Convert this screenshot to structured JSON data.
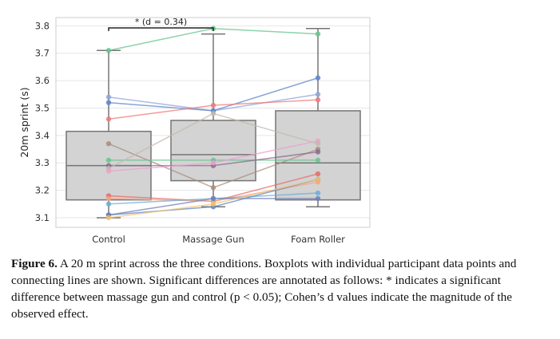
{
  "chart_data": {
    "type": "box",
    "categories": [
      "Control",
      "Massage Gun",
      "Foam Roller"
    ],
    "ylabel": "20m sprint (s)",
    "xlabel": "",
    "ylim": [
      3.065,
      3.83
    ],
    "yticks": [
      3.1,
      3.2,
      3.3,
      3.4,
      3.5,
      3.6,
      3.7,
      3.8
    ],
    "grid": true,
    "boxes": [
      {
        "category": "Control",
        "whisker_low": 3.1,
        "q1": 3.165,
        "median": 3.29,
        "q3": 3.415,
        "whisker_high": 3.71
      },
      {
        "category": "Massage Gun",
        "whisker_low": 3.14,
        "q1": 3.235,
        "median": 3.33,
        "q3": 3.455,
        "whisker_high": 3.77
      },
      {
        "category": "Foam Roller",
        "whisker_low": 3.14,
        "q1": 3.165,
        "median": 3.3,
        "q3": 3.49,
        "whisker_high": 3.79
      }
    ],
    "participants": [
      {
        "color": "#66c48d",
        "values": [
          3.71,
          3.79,
          3.77
        ]
      },
      {
        "color": "#8fa7d6",
        "values": [
          3.54,
          3.49,
          3.55
        ]
      },
      {
        "color": "#5f86c9",
        "values": [
          3.52,
          3.49,
          3.61
        ]
      },
      {
        "color": "#ef7a7a",
        "values": [
          3.46,
          3.51,
          3.53
        ]
      },
      {
        "color": "#a88d7c",
        "values": [
          3.37,
          3.21,
          3.35
        ]
      },
      {
        "color": "#66c48d",
        "values": [
          3.31,
          3.31,
          3.31
        ]
      },
      {
        "color": "#8b6a8f",
        "values": [
          3.29,
          3.29,
          3.34
        ]
      },
      {
        "color": "#ee9ed2",
        "values": [
          3.27,
          3.3,
          3.38
        ]
      },
      {
        "color": "#c4b8ae",
        "values": [
          3.28,
          3.48,
          3.37
        ]
      },
      {
        "color": "#e86a6a",
        "values": [
          3.18,
          3.16,
          3.26
        ]
      },
      {
        "color": "#f4a582",
        "values": [
          3.17,
          3.16,
          3.23
        ]
      },
      {
        "color": "#6baed6",
        "values": [
          3.15,
          3.17,
          3.19
        ]
      },
      {
        "color": "#5f86c9",
        "values": [
          3.11,
          3.14,
          3.24
        ]
      },
      {
        "color": "#6f7fb5",
        "values": [
          3.11,
          3.17,
          3.17
        ]
      },
      {
        "color": "#f5c26b",
        "values": [
          3.1,
          3.15,
          3.24
        ]
      }
    ],
    "annotation": {
      "text": "* (d = 0.34)",
      "from": "Control",
      "to": "Massage Gun"
    }
  },
  "caption": {
    "label": "Figure 6.",
    "text": "A 20 m sprint across the three conditions. Boxplots with individual participant data points and connecting lines are shown. Significant differences are annotated as follows: * indicates a significant difference between massage gun and control (p < 0.05); Cohen’s d values indicate the magnitude of the observed effect."
  }
}
